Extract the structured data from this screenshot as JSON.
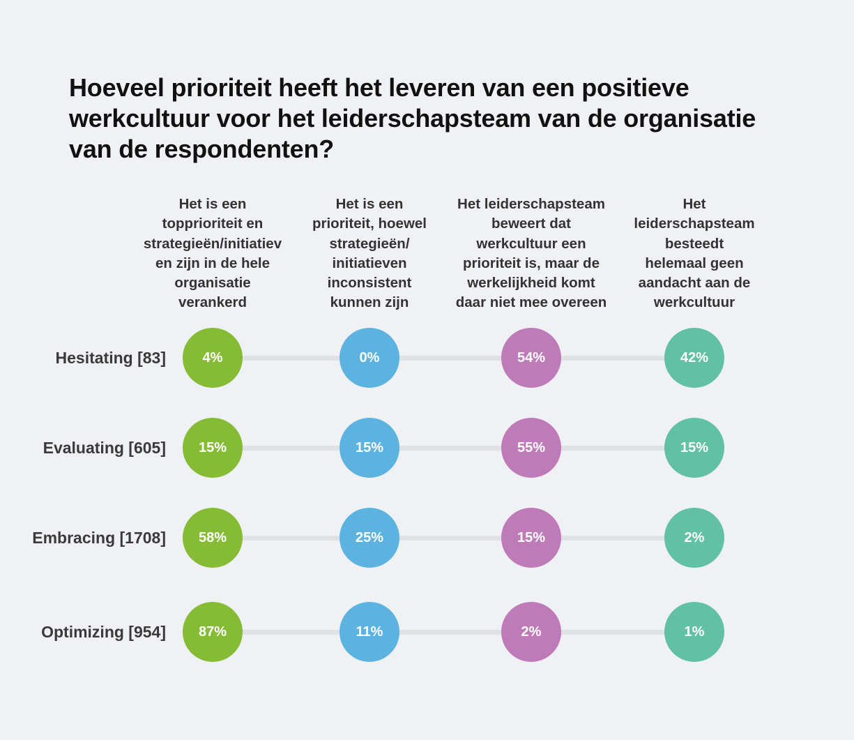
{
  "chart_data": {
    "type": "table",
    "title_lines": [
      "Hoeveel prioriteit heeft het leveren van een positieve",
      "werkcultuur voor het leiderschapsteam van de organisatie",
      "van de respondenten?"
    ],
    "columns": [
      {
        "key": "topprioriteit",
        "label_lines": [
          "Het is een",
          "topprioriteit en",
          "strategieën/initiatiev",
          "en zijn in de hele",
          "organisatie",
          "verankerd"
        ],
        "color": "#86bc35"
      },
      {
        "key": "inconsistent",
        "label_lines": [
          "Het is een",
          "prioriteit, hoewel",
          "strategieën/",
          "initiatieven",
          "inconsistent",
          "kunnen zijn"
        ],
        "color": "#5db3e0"
      },
      {
        "key": "bewering",
        "label_lines": [
          "Het leiderschapsteam",
          "beweert dat",
          "werkcultuur een",
          "prioriteit is, maar de",
          "werkelijkheid komt",
          "daar niet mee overeen"
        ],
        "color": "#bf7ab8"
      },
      {
        "key": "geen-aandacht",
        "label_lines": [
          "Het",
          "leiderschapsteam",
          "besteedt",
          "helemaal geen",
          "aandacht aan de",
          "werkcultuur"
        ],
        "color": "#62c0a3"
      }
    ],
    "rows": [
      {
        "label": "Hesitating [83]",
        "values": [
          4,
          0,
          54,
          42
        ]
      },
      {
        "label": "Evaluating [605]",
        "values": [
          15,
          15,
          55,
          15
        ]
      },
      {
        "label": "Embracing [1708]",
        "values": [
          58,
          25,
          15,
          2
        ]
      },
      {
        "label": "Optimizing [954]",
        "values": [
          87,
          11,
          2,
          1
        ]
      }
    ],
    "value_suffix": "%"
  }
}
